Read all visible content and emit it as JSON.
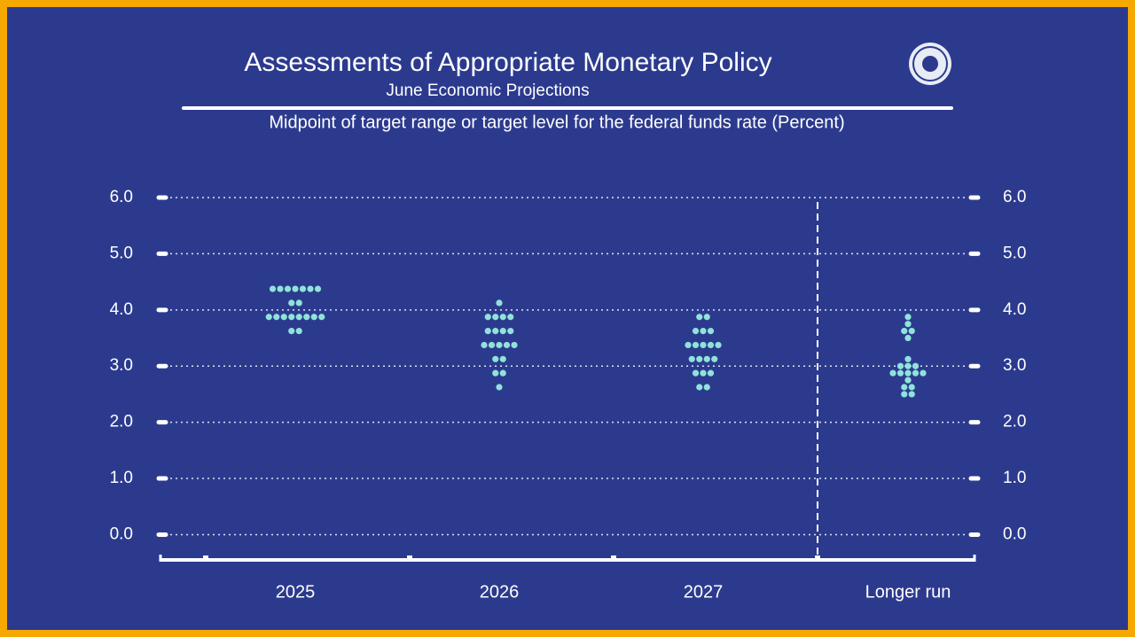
{
  "chart_data": {
    "type": "dot",
    "title": "Assessments of Appropriate Monetary Policy",
    "subtitle": "June Economic Projections",
    "axis_title": "Midpoint of target range or target level for the federal funds rate (Percent)",
    "categories": [
      "2025",
      "2026",
      "2027",
      "Longer run"
    ],
    "values": [
      [
        4.375,
        4.375,
        4.375,
        4.375,
        4.375,
        4.375,
        4.375,
        4.125,
        4.125,
        3.875,
        3.875,
        3.875,
        3.875,
        3.875,
        3.875,
        3.875,
        3.875,
        3.625,
        3.625
      ],
      [
        4.125,
        3.875,
        3.875,
        3.875,
        3.875,
        3.625,
        3.625,
        3.625,
        3.625,
        3.375,
        3.375,
        3.375,
        3.375,
        3.375,
        3.125,
        3.125,
        2.875,
        2.875,
        2.625
      ],
      [
        3.875,
        3.875,
        3.625,
        3.625,
        3.625,
        3.375,
        3.375,
        3.375,
        3.375,
        3.375,
        3.125,
        3.125,
        3.125,
        3.125,
        2.875,
        2.875,
        2.875,
        2.625,
        2.625
      ],
      [
        3.875,
        3.75,
        3.625,
        3.625,
        3.5,
        3.125,
        3.0,
        3.0,
        3.0,
        2.875,
        2.875,
        2.875,
        2.875,
        2.875,
        2.75,
        2.625,
        2.625,
        2.5,
        2.5
      ]
    ],
    "color": "#8fe3da",
    "ylim": [
      -0.45,
      6.0
    ],
    "yticks": [
      {
        "value": 0,
        "label": "0.0"
      },
      {
        "value": 1,
        "label": "1.0"
      },
      {
        "value": 2,
        "label": "2.0"
      },
      {
        "value": 3,
        "label": "3.0"
      },
      {
        "value": 4,
        "label": "4.0"
      },
      {
        "value": 5,
        "label": "5.0"
      },
      {
        "value": 6,
        "label": "6.0"
      }
    ],
    "grid": true
  }
}
